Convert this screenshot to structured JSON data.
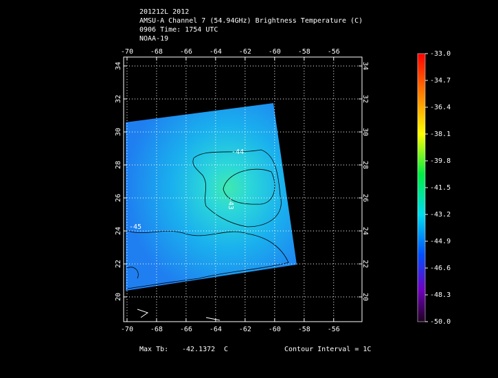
{
  "header": {
    "lines": [
      "201212L 2012",
      "AMSU-A Channel 7 (54.94GHz) Brightness Temperature (C)",
      "0906 Time: 1754 UTC",
      "NOAA-19"
    ]
  },
  "map": {
    "xlim": [
      -70.23,
      -54.08
    ],
    "ylim": [
      18.5,
      34.54
    ],
    "xticks": [
      -70,
      -68,
      -66,
      -64,
      -62,
      -60,
      -58,
      -56
    ],
    "yticks": [
      20,
      22,
      24,
      26,
      28,
      30,
      32,
      34
    ],
    "contour_labels": [
      "-44",
      "-43",
      "-45"
    ]
  },
  "colorbar": {
    "lim": [
      -50,
      -33
    ],
    "ticks": [
      {
        "value": -33,
        "label": "-33.0"
      },
      {
        "value": -34.7,
        "label": "-34.7"
      },
      {
        "value": -36.4,
        "label": "-36.4"
      },
      {
        "value": -38.1,
        "label": "-38.1"
      },
      {
        "value": -39.8,
        "label": "-39.8"
      },
      {
        "value": -41.5,
        "label": "-41.5"
      },
      {
        "value": -43.2,
        "label": "-43.2"
      },
      {
        "value": -44.9,
        "label": "-44.9"
      },
      {
        "value": -46.6,
        "label": "-46.6"
      },
      {
        "value": -48.3,
        "label": "-48.3"
      },
      {
        "value": -50,
        "label": "-50.0"
      }
    ]
  },
  "footer": {
    "max_label": "Max Tb:",
    "max_value": "-42.1372",
    "unit": "C",
    "interval": "Contour Interval = 1C"
  }
}
